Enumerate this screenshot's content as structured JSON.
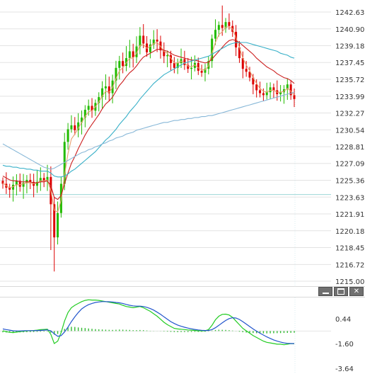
{
  "chart_data": [
    {
      "type": "candlestick",
      "title": "",
      "y_ticks": [
        "1242.63",
        "1240.90",
        "1239.18",
        "1237.45",
        "1235.72",
        "1233.99",
        "1232.27",
        "1230.54",
        "1228.81",
        "1227.09",
        "1225.36",
        "1223.63",
        "1221.91",
        "1220.18",
        "1218.45",
        "1216.72",
        "1215.00"
      ],
      "ylim": [
        1215.0,
        1243.5
      ],
      "grid": "horizontal",
      "bullish_color": "#22bb00",
      "bearish_color": "#dd0000",
      "reference_line": {
        "value": 1223.9,
        "color": "#9bd6d6"
      },
      "close": [
        1225.0,
        1224.6,
        1224.4,
        1224.9,
        1225.3,
        1224.7,
        1225.1,
        1225.4,
        1225.2,
        1224.8,
        1225.2,
        1225.6,
        1225.3,
        1225.7,
        1222.9,
        1219.5,
        1222.0,
        1225.0,
        1229.3,
        1230.6,
        1231.0,
        1230.5,
        1231.3,
        1231.8,
        1232.6,
        1233.0,
        1232.5,
        1233.3,
        1233.9,
        1234.8,
        1235.0,
        1234.3,
        1235.6,
        1236.9,
        1237.6,
        1237.1,
        1237.9,
        1238.6,
        1238.0,
        1239.1,
        1240.2,
        1239.4,
        1238.5,
        1239.3,
        1239.8,
        1239.6,
        1238.7,
        1238.1,
        1238.2,
        1237.4,
        1236.9,
        1237.4,
        1237.8,
        1237.2,
        1236.8,
        1236.9,
        1237.4,
        1236.6,
        1236.4,
        1236.8,
        1237.6,
        1239.9,
        1240.8,
        1241.3,
        1241.0,
        1241.6,
        1241.2,
        1240.6,
        1239.0,
        1237.9,
        1236.8,
        1236.5,
        1235.9,
        1235.2,
        1234.6,
        1234.3,
        1234.1,
        1234.4,
        1234.9,
        1234.6,
        1234.2,
        1234.4,
        1234.7,
        1235.2,
        1234.1,
        1233.7
      ],
      "ma_series": [
        {
          "color": "#e8a070",
          "values": [
            1225.1,
            1224.8,
            1224.6,
            1224.7,
            1224.9,
            1224.9,
            1225.0,
            1225.1,
            1225.1,
            1225.0,
            1225.1,
            1225.3,
            1225.3,
            1225.4,
            1224.3,
            1222.3,
            1222.1,
            1223.3,
            1225.9,
            1228.1,
            1229.6,
            1230.1,
            1230.7,
            1231.3,
            1231.9,
            1232.4,
            1232.5,
            1232.9,
            1233.4,
            1234.0,
            1234.5,
            1234.4,
            1234.9,
            1235.8,
            1236.6,
            1236.9,
            1237.4,
            1237.9,
            1237.9,
            1238.4,
            1239.2,
            1239.3,
            1238.9,
            1239.1,
            1239.4,
            1239.5,
            1239.1,
            1238.6,
            1238.4,
            1237.9,
            1237.4,
            1237.4,
            1237.6,
            1237.4,
            1237.1,
            1237.0,
            1237.2,
            1236.9,
            1236.7,
            1236.7,
            1237.1,
            1238.4,
            1239.5,
            1240.3,
            1240.6,
            1241.1,
            1241.1,
            1240.9,
            1240.0,
            1239.0,
            1237.9,
            1237.2,
            1236.6,
            1235.9,
            1235.3,
            1234.8,
            1234.5,
            1234.4,
            1234.6,
            1234.6,
            1234.4,
            1234.4,
            1234.5,
            1234.8,
            1234.5,
            1234.1
          ]
        },
        {
          "color": "#cc2020",
          "values": [
            1225.8,
            1225.6,
            1225.4,
            1225.3,
            1225.3,
            1225.2,
            1225.2,
            1225.2,
            1225.2,
            1225.1,
            1225.1,
            1225.2,
            1225.2,
            1225.3,
            1224.8,
            1223.6,
            1223.4,
            1223.8,
            1225.0,
            1226.1,
            1227.1,
            1227.8,
            1228.6,
            1229.3,
            1230.0,
            1230.6,
            1231.1,
            1231.6,
            1232.1,
            1232.7,
            1233.2,
            1233.5,
            1233.9,
            1234.5,
            1235.1,
            1235.5,
            1236.0,
            1236.4,
            1236.7,
            1237.1,
            1237.6,
            1238.0,
            1238.2,
            1238.4,
            1238.6,
            1238.8,
            1238.8,
            1238.7,
            1238.6,
            1238.4,
            1238.2,
            1238.1,
            1238.0,
            1237.9,
            1237.8,
            1237.7,
            1237.7,
            1237.6,
            1237.5,
            1237.4,
            1237.5,
            1237.8,
            1238.2,
            1238.6,
            1239.0,
            1239.4,
            1239.7,
            1239.8,
            1239.7,
            1239.5,
            1239.2,
            1238.9,
            1238.6,
            1238.3,
            1237.9,
            1237.6,
            1237.3,
            1237.0,
            1236.8,
            1236.6,
            1236.3,
            1236.1,
            1235.9,
            1235.8,
            1235.6,
            1235.3
          ]
        },
        {
          "color": "#38b0c8",
          "values": [
            1226.9,
            1226.8,
            1226.8,
            1226.7,
            1226.7,
            1226.6,
            1226.6,
            1226.5,
            1226.5,
            1226.4,
            1226.4,
            1226.3,
            1226.3,
            1226.3,
            1226.1,
            1225.8,
            1225.7,
            1225.7,
            1225.8,
            1226.0,
            1226.3,
            1226.5,
            1226.8,
            1227.1,
            1227.4,
            1227.7,
            1228.0,
            1228.3,
            1228.7,
            1229.1,
            1229.5,
            1229.8,
            1230.2,
            1230.6,
            1231.1,
            1231.5,
            1231.9,
            1232.4,
            1232.8,
            1233.2,
            1233.7,
            1234.1,
            1234.5,
            1234.9,
            1235.3,
            1235.6,
            1235.9,
            1236.2,
            1236.4,
            1236.6,
            1236.8,
            1237.0,
            1237.2,
            1237.4,
            1237.5,
            1237.6,
            1237.7,
            1237.8,
            1237.9,
            1238.0,
            1238.1,
            1238.3,
            1238.5,
            1238.7,
            1238.9,
            1239.1,
            1239.3,
            1239.4,
            1239.5,
            1239.5,
            1239.5,
            1239.5,
            1239.4,
            1239.3,
            1239.2,
            1239.1,
            1239.0,
            1238.9,
            1238.8,
            1238.7,
            1238.6,
            1238.4,
            1238.3,
            1238.2,
            1238.0,
            1237.9
          ]
        },
        {
          "color": "#88b8d8",
          "values": [
            1229.1,
            1228.9,
            1228.7,
            1228.5,
            1228.3,
            1228.1,
            1227.9,
            1227.7,
            1227.5,
            1227.3,
            1227.1,
            1226.9,
            1226.7,
            1226.6,
            1226.5,
            1226.6,
            1226.8,
            1227.0,
            1227.2,
            1227.4,
            1227.6,
            1227.8,
            1228.0,
            1228.2,
            1228.3,
            1228.5,
            1228.6,
            1228.8,
            1228.9,
            1229.1,
            1229.2,
            1229.4,
            1229.5,
            1229.7,
            1229.8,
            1229.9,
            1230.1,
            1230.2,
            1230.3,
            1230.5,
            1230.6,
            1230.7,
            1230.8,
            1230.9,
            1231.0,
            1231.1,
            1231.2,
            1231.3,
            1231.3,
            1231.4,
            1231.5,
            1231.5,
            1231.6,
            1231.6,
            1231.7,
            1231.7,
            1231.8,
            1231.8,
            1231.9,
            1231.9,
            1232.0,
            1232.0,
            1232.1,
            1232.2,
            1232.3,
            1232.4,
            1232.5,
            1232.6,
            1232.7,
            1232.8,
            1232.9,
            1233.0,
            1233.1,
            1233.2,
            1233.3,
            1233.4,
            1233.5,
            1233.6,
            1233.7,
            1233.8,
            1233.9,
            1234.0,
            1234.1,
            1234.2,
            1234.3,
            1234.4
          ]
        }
      ]
    },
    {
      "type": "oscillator",
      "title": "",
      "y_ticks": [
        "0.44",
        "-1.60",
        "-3.64"
      ],
      "ylim": [
        -3.64,
        2.4
      ],
      "zero_level": -0.57,
      "histogram_color": "#33bb33",
      "histogram": [
        -0.15,
        -0.17,
        -0.18,
        -0.18,
        -0.17,
        -0.16,
        -0.15,
        -0.14,
        -0.13,
        -0.12,
        -0.1,
        -0.08,
        -0.07,
        -0.06,
        -0.2,
        -0.42,
        -0.35,
        -0.15,
        0.25,
        0.45,
        0.5,
        0.48,
        0.42,
        0.38,
        0.35,
        0.3,
        0.26,
        0.22,
        0.2,
        0.18,
        0.16,
        0.14,
        0.13,
        0.15,
        0.17,
        0.16,
        0.14,
        0.13,
        0.1,
        0.1,
        0.12,
        0.1,
        0.06,
        0.03,
        0.02,
        0.01,
        -0.02,
        -0.05,
        -0.07,
        -0.1,
        -0.12,
        -0.13,
        -0.12,
        -0.12,
        -0.12,
        -0.11,
        -0.1,
        -0.1,
        -0.09,
        -0.08,
        -0.04,
        0.05,
        0.12,
        0.15,
        0.14,
        0.13,
        0.1,
        0.05,
        -0.02,
        -0.08,
        -0.14,
        -0.18,
        -0.21,
        -0.24,
        -0.26,
        -0.27,
        -0.28,
        -0.28,
        -0.27,
        -0.26,
        -0.25,
        -0.24,
        -0.23,
        -0.22,
        -0.21,
        -0.2
      ],
      "series": [
        {
          "color": "#22cc22",
          "values": [
            -0.55,
            -0.62,
            -0.68,
            -0.7,
            -0.66,
            -0.62,
            -0.59,
            -0.56,
            -0.54,
            -0.53,
            -0.5,
            -0.46,
            -0.44,
            -0.42,
            -0.85,
            -1.6,
            -1.4,
            -0.7,
            0.25,
            0.95,
            1.35,
            1.55,
            1.7,
            1.85,
            1.95,
            2.0,
            1.98,
            1.98,
            1.95,
            1.9,
            1.85,
            1.8,
            1.75,
            1.7,
            1.65,
            1.55,
            1.45,
            1.4,
            1.35,
            1.4,
            1.45,
            1.35,
            1.2,
            1.05,
            0.85,
            0.65,
            0.4,
            0.15,
            -0.05,
            -0.2,
            -0.35,
            -0.4,
            -0.42,
            -0.45,
            -0.48,
            -0.5,
            -0.52,
            -0.55,
            -0.55,
            -0.55,
            -0.45,
            -0.1,
            0.35,
            0.65,
            0.8,
            0.82,
            0.75,
            0.55,
            0.25,
            -0.05,
            -0.35,
            -0.55,
            -0.75,
            -0.95,
            -1.1,
            -1.25,
            -1.4,
            -1.5,
            -1.55,
            -1.6,
            -1.65,
            -1.65,
            -1.7,
            -1.65,
            -1.6,
            -1.62
          ]
        },
        {
          "color": "#2255cc",
          "values": [
            -0.4,
            -0.45,
            -0.5,
            -0.55,
            -0.56,
            -0.56,
            -0.55,
            -0.54,
            -0.54,
            -0.54,
            -0.53,
            -0.52,
            -0.5,
            -0.48,
            -0.55,
            -0.8,
            -1.0,
            -0.95,
            -0.65,
            -0.25,
            0.2,
            0.6,
            0.95,
            1.25,
            1.45,
            1.6,
            1.7,
            1.78,
            1.82,
            1.85,
            1.85,
            1.84,
            1.82,
            1.78,
            1.75,
            1.7,
            1.62,
            1.55,
            1.5,
            1.48,
            1.48,
            1.45,
            1.38,
            1.28,
            1.15,
            0.98,
            0.8,
            0.6,
            0.4,
            0.2,
            0.05,
            -0.08,
            -0.18,
            -0.26,
            -0.33,
            -0.39,
            -0.44,
            -0.48,
            -0.51,
            -0.53,
            -0.52,
            -0.45,
            -0.3,
            -0.1,
            0.1,
            0.3,
            0.45,
            0.52,
            0.5,
            0.38,
            0.2,
            0.0,
            -0.2,
            -0.4,
            -0.58,
            -0.75,
            -0.9,
            -1.05,
            -1.18,
            -1.3,
            -1.4,
            -1.48,
            -1.55,
            -1.58,
            -1.6,
            -1.6
          ]
        }
      ]
    }
  ],
  "window_controls": {
    "minimize_label": "",
    "maximize_label": "",
    "close_label": "✕"
  }
}
